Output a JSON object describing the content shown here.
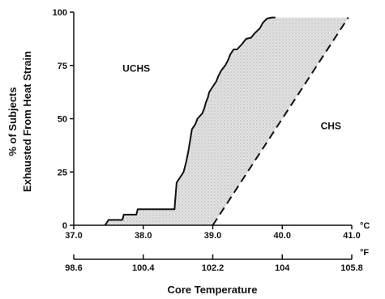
{
  "chart_data": {
    "type": "area",
    "title": "",
    "ylabel_line1": "% of Subjects",
    "ylabel_line2": "Exhausted From Heat Strain",
    "xlabel": "Core Temperature",
    "ylim": [
      0,
      100
    ],
    "xlim": [
      37.0,
      41.0
    ],
    "y_ticks": [
      0,
      25,
      50,
      75,
      100
    ],
    "x_ticks_c": [
      {
        "value": 37.0,
        "label": "37.0"
      },
      {
        "value": 38.0,
        "label": "38.0"
      },
      {
        "value": 39.0,
        "label": "39.0"
      },
      {
        "value": 40.0,
        "label": "40.0"
      },
      {
        "value": 41.0,
        "label": "41.0"
      }
    ],
    "x_ticks_f": [
      {
        "value": 37.0,
        "label": "98.6"
      },
      {
        "value": 38.0,
        "label": "100.4"
      },
      {
        "value": 39.0,
        "label": "102.2"
      },
      {
        "value": 40.0,
        "label": "104"
      },
      {
        "value": 41.0,
        "label": "105.8"
      }
    ],
    "unit_c": "°C",
    "unit_f": "°F",
    "regions": [
      {
        "name": "UCHS",
        "x": 37.9,
        "y": 72
      },
      {
        "name": "CHS",
        "x": 40.7,
        "y": 45
      }
    ],
    "series": [
      {
        "style": "solid",
        "x": [
          37.45,
          37.5,
          37.6,
          37.7,
          37.72,
          37.85,
          37.9,
          37.92,
          38.05,
          38.1,
          38.3,
          38.45,
          38.48,
          38.58,
          38.62,
          38.65,
          38.7,
          38.75,
          38.78,
          38.85,
          38.88,
          38.9,
          38.93,
          38.95,
          39.0,
          39.05,
          39.08,
          39.12,
          39.18,
          39.22,
          39.25,
          39.3,
          39.35,
          39.42,
          39.48,
          39.55,
          39.6,
          39.68,
          39.72,
          39.78,
          39.85,
          39.9
        ],
        "y": [
          0,
          2.5,
          2.5,
          2.5,
          5,
          5,
          5,
          7.5,
          7.5,
          7.5,
          7.5,
          7.5,
          20,
          25,
          30,
          35,
          45,
          47.5,
          50,
          52.5,
          55,
          57.5,
          60,
          62.5,
          65,
          67.5,
          70,
          72.5,
          75,
          77.5,
          80,
          82.5,
          82.5,
          85,
          87.5,
          88,
          90,
          92.5,
          95,
          97,
          97.5,
          97.5
        ]
      },
      {
        "style": "dashed",
        "x": [
          39.0,
          40.95
        ],
        "y": [
          0,
          97.5
        ]
      }
    ],
    "grid": false,
    "legend": "none"
  }
}
